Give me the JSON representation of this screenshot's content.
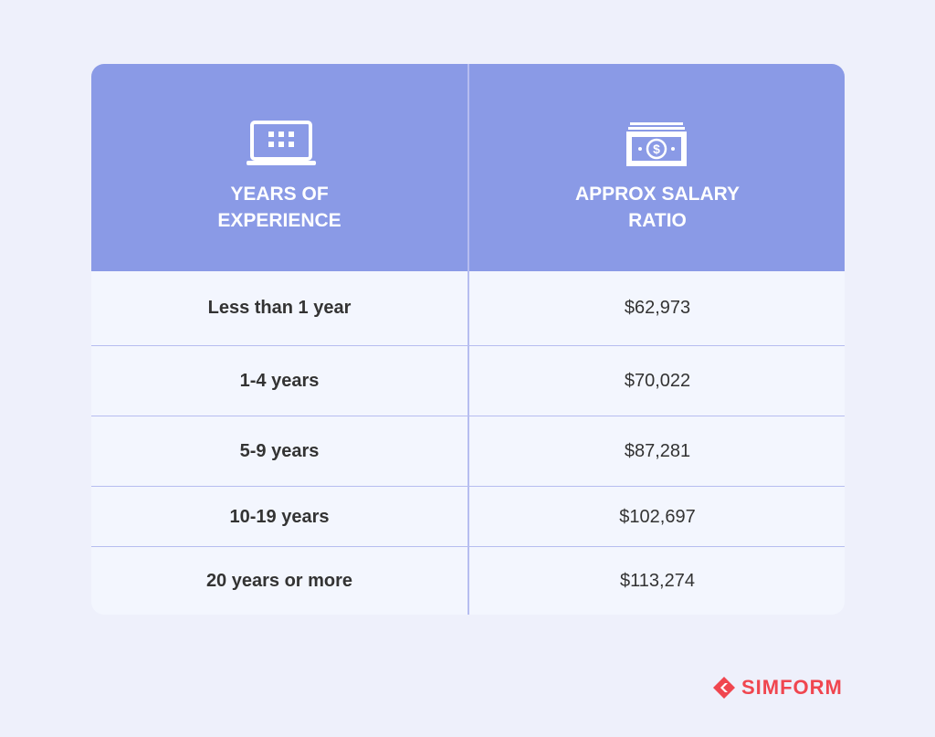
{
  "table": {
    "headers": [
      "YEARS OF EXPERIENCE",
      "APPROX SALARY RATIO"
    ],
    "rows": [
      [
        "Less than 1 year",
        "$62,973"
      ],
      [
        "1-4 years",
        "$70,022"
      ],
      [
        "5-9 years",
        "$87,281"
      ],
      [
        "10-19 years",
        "$102,697"
      ],
      [
        "20 years or more",
        "$113,274"
      ]
    ]
  },
  "logo": {
    "text": "SIMFORM"
  }
}
